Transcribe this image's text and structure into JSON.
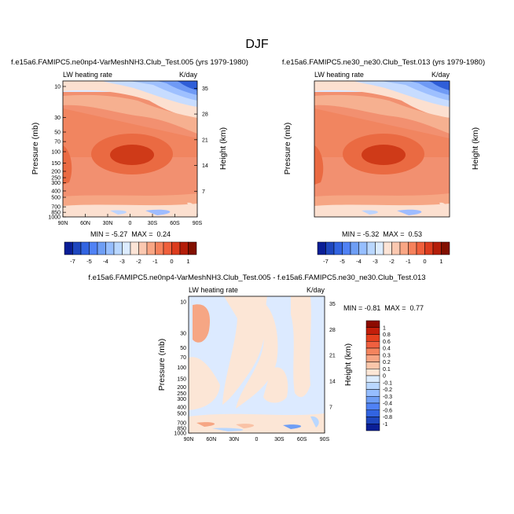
{
  "figure": {
    "title": "DJF"
  },
  "chart_data": [
    {
      "type": "heatmap",
      "id": "top-left",
      "title": "f.e15a6.FAMIPC5.ne0np4-VarMeshNH3.Club_Test.005 (yrs 1979-1980)",
      "left_label": "LW heating rate",
      "right_label": "K/day",
      "xlabel": "",
      "ylabel": "Pressure (mb)",
      "y2label": "Height (km)",
      "x_ticks": [
        "90N",
        "60N",
        "30N",
        "0",
        "30S",
        "60S",
        "90S"
      ],
      "y_ticks": [
        "10",
        "30",
        "50",
        "70",
        "100",
        "150",
        "200",
        "250",
        "300",
        "400",
        "500",
        "700",
        "850",
        "1000"
      ],
      "y2_ticks": [
        "35",
        "28",
        "21",
        "14",
        "7"
      ],
      "stats": "MIN = -5.27  MAX =  0.24",
      "min": -5.27,
      "max": 0.24
    },
    {
      "type": "heatmap",
      "id": "top-right",
      "title": "f.e15a6.FAMIPC5.ne30_ne30.Club_Test.013 (yrs 1979-1980)",
      "left_label": "LW heating rate",
      "right_label": "K/day",
      "xlabel": "",
      "ylabel": "Pressure (mb)",
      "y2label": "Height (km)",
      "x_ticks": [
        "90N",
        "60N",
        "30N",
        "0",
        "30S",
        "60S",
        "90S"
      ],
      "y_ticks": [
        "10",
        "30",
        "50",
        "70",
        "100",
        "150",
        "200",
        "250",
        "300",
        "400",
        "500",
        "700",
        "850",
        "1000"
      ],
      "y2_ticks": [
        "35",
        "28",
        "21",
        "14",
        "7"
      ],
      "stats": "MIN = -5.32  MAX =  0.53",
      "min": -5.32,
      "max": 0.53
    },
    {
      "type": "heatmap",
      "id": "difference",
      "title": "f.e15a6.FAMIPC5.ne0np4-VarMeshNH3.Club_Test.005 - f.e15a6.FAMIPC5.ne30_ne30.Club_Test.013",
      "left_label": "LW heating rate",
      "right_label": "K/day",
      "xlabel": "",
      "ylabel": "Pressure (mb)",
      "y2label": "Height (km)",
      "x_ticks": [
        "90N",
        "60N",
        "30N",
        "0",
        "30S",
        "60S",
        "90S"
      ],
      "y_ticks": [
        "10",
        "30",
        "50",
        "70",
        "100",
        "150",
        "200",
        "250",
        "300",
        "400",
        "500",
        "700",
        "850",
        "1000"
      ],
      "y2_ticks": [
        "35",
        "28",
        "21",
        "14",
        "7"
      ],
      "stats": "MIN = -0.81  MAX =  0.77",
      "min": -0.81,
      "max": 0.77
    }
  ],
  "colorbar_top": {
    "labels": [
      "-7",
      "-5",
      "-4",
      "-3",
      "-2",
      "-1",
      "0",
      "1"
    ],
    "colors": [
      "#0a1e96",
      "#1e46be",
      "#3264e1",
      "#5082f5",
      "#6e9ef5",
      "#96beff",
      "#b9d7ff",
      "#dcecff",
      "#fce4d6",
      "#fbc8b0",
      "#f9a684",
      "#f6825c",
      "#f0603c",
      "#dc3c1e",
      "#b41e0a",
      "#821000"
    ]
  },
  "colorbar_diff": {
    "labels": [
      "1",
      "0.8",
      "0.6",
      "0.4",
      "0.3",
      "0.2",
      "0.1",
      "0",
      "-0.1",
      "-0.2",
      "-0.3",
      "-0.4",
      "-0.6",
      "-0.8",
      "-1"
    ],
    "colors": [
      "#8c0a00",
      "#c31e0a",
      "#e5401e",
      "#f06040",
      "#f4845e",
      "#f7a584",
      "#fac6aa",
      "#fce6d6",
      "#dcecff",
      "#b9d7ff",
      "#96beff",
      "#6e9ef5",
      "#5082f5",
      "#3264e1",
      "#1e46be",
      "#0a1e96"
    ]
  }
}
